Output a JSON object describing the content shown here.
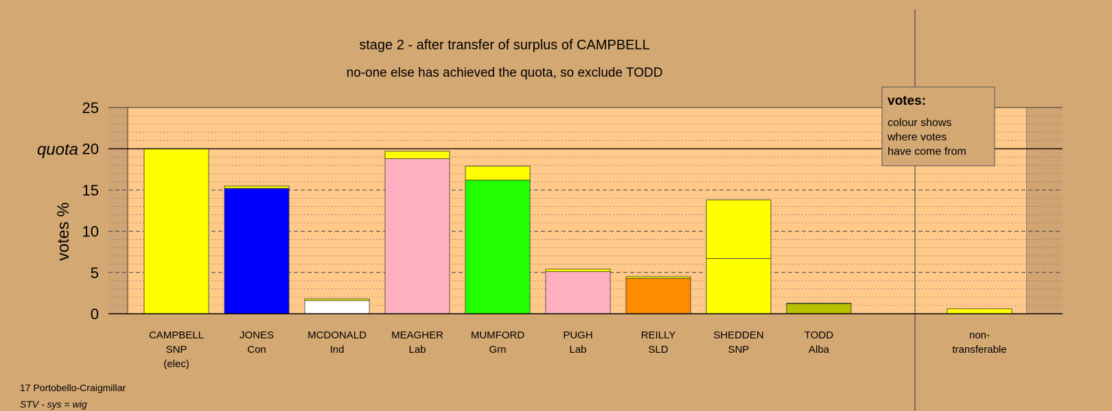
{
  "footer": {
    "ward": "17 Portobello-Craigmillar",
    "system": "STV - sys = wig"
  },
  "legend": {
    "title": "votes:",
    "lines": [
      "colour shows",
      "where votes",
      "have come from"
    ]
  },
  "colors": {
    "background": "#d4a873",
    "plot_area": "#ffc98a",
    "side_area": "#d1a474"
  },
  "chart_data": {
    "type": "bar",
    "stacked": true,
    "title": "stage 2 - after transfer of surplus of CAMPBELL",
    "subtitle": "no-one else has achieved the quota, so exclude TODD",
    "ylabel": "votes %",
    "ylim": [
      0,
      25
    ],
    "yticks": [
      0,
      5,
      10,
      15,
      20,
      25
    ],
    "quota": {
      "label": "quota",
      "value": 20
    },
    "grid": true,
    "legend_position": "top-right",
    "categories": [
      {
        "name": "CAMPBELL",
        "party": "SNP",
        "note": "(elec)"
      },
      {
        "name": "JONES",
        "party": "Con",
        "note": ""
      },
      {
        "name": "MCDONALD",
        "party": "Ind",
        "note": ""
      },
      {
        "name": "MEAGHER",
        "party": "Lab",
        "note": ""
      },
      {
        "name": "MUMFORD",
        "party": "Grn",
        "note": ""
      },
      {
        "name": "PUGH",
        "party": "Lab",
        "note": ""
      },
      {
        "name": "REILLY",
        "party": "SLD",
        "note": ""
      },
      {
        "name": "SHEDDEN",
        "party": "SNP",
        "note": ""
      },
      {
        "name": "TODD",
        "party": "Alba",
        "note": ""
      },
      {
        "name": "non-",
        "party": "transferable",
        "note": ""
      }
    ],
    "bars": [
      [
        {
          "value": 20.0,
          "color": "#ffff00"
        }
      ],
      [
        {
          "value": 15.2,
          "color": "#0000ff"
        },
        {
          "value": 0.3,
          "color": "#ffff00"
        }
      ],
      [
        {
          "value": 1.6,
          "color": "#ffffff"
        },
        {
          "value": 0.2,
          "color": "#ffff00"
        }
      ],
      [
        {
          "value": 18.8,
          "color": "#ffb0c0"
        },
        {
          "value": 0.9,
          "color": "#ffff00"
        }
      ],
      [
        {
          "value": 16.2,
          "color": "#22ff00"
        },
        {
          "value": 1.7,
          "color": "#ffff00"
        }
      ],
      [
        {
          "value": 5.1,
          "color": "#ffb0c0"
        },
        {
          "value": 0.3,
          "color": "#ffff00"
        }
      ],
      [
        {
          "value": 4.3,
          "color": "#ff8c00"
        },
        {
          "value": 0.2,
          "color": "#ffff00"
        }
      ],
      [
        {
          "value": 6.7,
          "color": "#ffff00"
        },
        {
          "value": 7.1,
          "color": "#ffff00"
        }
      ],
      [
        {
          "value": 1.2,
          "color": "#b8c000"
        },
        {
          "value": 0.1,
          "color": "#ffff00"
        }
      ],
      [
        {
          "value": 0.6,
          "color": "#ffff00"
        }
      ]
    ]
  }
}
